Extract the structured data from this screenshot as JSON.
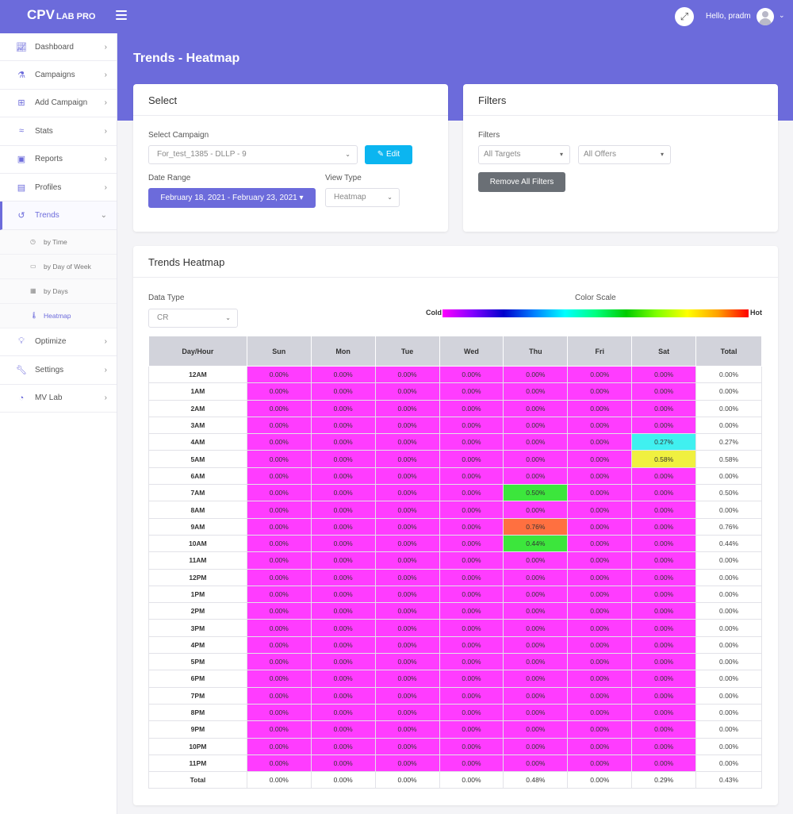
{
  "topbar": {
    "logo": "CPV",
    "logo_sub": "LAB PRO",
    "greeting": "Hello, pradm"
  },
  "sidebar": {
    "items": [
      {
        "label": "Dashboard",
        "icon": "chart-line-icon"
      },
      {
        "label": "Campaigns",
        "icon": "flask-icon"
      },
      {
        "label": "Add Campaign",
        "icon": "plus-square-icon"
      },
      {
        "label": "Stats",
        "icon": "stats-icon"
      },
      {
        "label": "Reports",
        "icon": "briefcase-icon"
      },
      {
        "label": "Profiles",
        "icon": "clipboard-icon"
      },
      {
        "label": "Trends",
        "icon": "history-icon"
      }
    ],
    "trends_sub": [
      {
        "label": "by Time",
        "icon": "clock-icon"
      },
      {
        "label": "by Day of Week",
        "icon": "calendar-icon"
      },
      {
        "label": "by Days",
        "icon": "calendar-days-icon"
      },
      {
        "label": "Heatmap",
        "icon": "thermometer-icon"
      }
    ],
    "items_after": [
      {
        "label": "Optimize",
        "icon": "lightbulb-icon"
      },
      {
        "label": "Settings",
        "icon": "wrench-icon"
      },
      {
        "label": "MV Lab",
        "icon": "mvlab-icon"
      }
    ]
  },
  "page": {
    "title": "Trends - Heatmap"
  },
  "select_card": {
    "title": "Select",
    "campaign_label": "Select Campaign",
    "campaign_value": "For_test_1385  -  DLLP  -  9",
    "edit_label": "Edit",
    "date_range_label": "Date Range",
    "date_range_value": "February 18, 2021 - February 23, 2021",
    "view_type_label": "View Type",
    "view_type_value": "Heatmap"
  },
  "filters_card": {
    "title": "Filters",
    "filters_label": "Filters",
    "targets_value": "All Targets",
    "offers_value": "All Offers",
    "remove_label": "Remove All Filters"
  },
  "heatmap_card": {
    "title": "Trends Heatmap",
    "data_type_label": "Data Type",
    "data_type_value": "CR",
    "color_scale_label": "Color Scale",
    "cold_label": "Cold",
    "hot_label": "Hot"
  },
  "colors": {
    "accent": "#6c6bdb",
    "edit_button": "#0bb5f0",
    "remove_button": "#6a6f75",
    "cell_zero": "#ff3cff",
    "cell_027": "#40f0f0",
    "cell_044": "#3ce63c",
    "cell_050": "#3ce63c",
    "cell_058": "#f0f040",
    "cell_076": "#ff7040"
  },
  "table": {
    "headers": [
      "Day/Hour",
      "Sun",
      "Mon",
      "Tue",
      "Wed",
      "Thu",
      "Fri",
      "Sat",
      "Total"
    ],
    "rows": [
      {
        "hour": "12AM",
        "cells": [
          "0.00%",
          "0.00%",
          "0.00%",
          "0.00%",
          "0.00%",
          "0.00%",
          "0.00%"
        ],
        "total": "0.00%"
      },
      {
        "hour": "1AM",
        "cells": [
          "0.00%",
          "0.00%",
          "0.00%",
          "0.00%",
          "0.00%",
          "0.00%",
          "0.00%"
        ],
        "total": "0.00%"
      },
      {
        "hour": "2AM",
        "cells": [
          "0.00%",
          "0.00%",
          "0.00%",
          "0.00%",
          "0.00%",
          "0.00%",
          "0.00%"
        ],
        "total": "0.00%"
      },
      {
        "hour": "3AM",
        "cells": [
          "0.00%",
          "0.00%",
          "0.00%",
          "0.00%",
          "0.00%",
          "0.00%",
          "0.00%"
        ],
        "total": "0.00%"
      },
      {
        "hour": "4AM",
        "cells": [
          "0.00%",
          "0.00%",
          "0.00%",
          "0.00%",
          "0.00%",
          "0.00%",
          "0.27%"
        ],
        "total": "0.27%"
      },
      {
        "hour": "5AM",
        "cells": [
          "0.00%",
          "0.00%",
          "0.00%",
          "0.00%",
          "0.00%",
          "0.00%",
          "0.58%"
        ],
        "total": "0.58%"
      },
      {
        "hour": "6AM",
        "cells": [
          "0.00%",
          "0.00%",
          "0.00%",
          "0.00%",
          "0.00%",
          "0.00%",
          "0.00%"
        ],
        "total": "0.00%"
      },
      {
        "hour": "7AM",
        "cells": [
          "0.00%",
          "0.00%",
          "0.00%",
          "0.00%",
          "0.50%",
          "0.00%",
          "0.00%"
        ],
        "total": "0.50%"
      },
      {
        "hour": "8AM",
        "cells": [
          "0.00%",
          "0.00%",
          "0.00%",
          "0.00%",
          "0.00%",
          "0.00%",
          "0.00%"
        ],
        "total": "0.00%"
      },
      {
        "hour": "9AM",
        "cells": [
          "0.00%",
          "0.00%",
          "0.00%",
          "0.00%",
          "0.76%",
          "0.00%",
          "0.00%"
        ],
        "total": "0.76%"
      },
      {
        "hour": "10AM",
        "cells": [
          "0.00%",
          "0.00%",
          "0.00%",
          "0.00%",
          "0.44%",
          "0.00%",
          "0.00%"
        ],
        "total": "0.44%"
      },
      {
        "hour": "11AM",
        "cells": [
          "0.00%",
          "0.00%",
          "0.00%",
          "0.00%",
          "0.00%",
          "0.00%",
          "0.00%"
        ],
        "total": "0.00%"
      },
      {
        "hour": "12PM",
        "cells": [
          "0.00%",
          "0.00%",
          "0.00%",
          "0.00%",
          "0.00%",
          "0.00%",
          "0.00%"
        ],
        "total": "0.00%"
      },
      {
        "hour": "1PM",
        "cells": [
          "0.00%",
          "0.00%",
          "0.00%",
          "0.00%",
          "0.00%",
          "0.00%",
          "0.00%"
        ],
        "total": "0.00%"
      },
      {
        "hour": "2PM",
        "cells": [
          "0.00%",
          "0.00%",
          "0.00%",
          "0.00%",
          "0.00%",
          "0.00%",
          "0.00%"
        ],
        "total": "0.00%"
      },
      {
        "hour": "3PM",
        "cells": [
          "0.00%",
          "0.00%",
          "0.00%",
          "0.00%",
          "0.00%",
          "0.00%",
          "0.00%"
        ],
        "total": "0.00%"
      },
      {
        "hour": "4PM",
        "cells": [
          "0.00%",
          "0.00%",
          "0.00%",
          "0.00%",
          "0.00%",
          "0.00%",
          "0.00%"
        ],
        "total": "0.00%"
      },
      {
        "hour": "5PM",
        "cells": [
          "0.00%",
          "0.00%",
          "0.00%",
          "0.00%",
          "0.00%",
          "0.00%",
          "0.00%"
        ],
        "total": "0.00%"
      },
      {
        "hour": "6PM",
        "cells": [
          "0.00%",
          "0.00%",
          "0.00%",
          "0.00%",
          "0.00%",
          "0.00%",
          "0.00%"
        ],
        "total": "0.00%"
      },
      {
        "hour": "7PM",
        "cells": [
          "0.00%",
          "0.00%",
          "0.00%",
          "0.00%",
          "0.00%",
          "0.00%",
          "0.00%"
        ],
        "total": "0.00%"
      },
      {
        "hour": "8PM",
        "cells": [
          "0.00%",
          "0.00%",
          "0.00%",
          "0.00%",
          "0.00%",
          "0.00%",
          "0.00%"
        ],
        "total": "0.00%"
      },
      {
        "hour": "9PM",
        "cells": [
          "0.00%",
          "0.00%",
          "0.00%",
          "0.00%",
          "0.00%",
          "0.00%",
          "0.00%"
        ],
        "total": "0.00%"
      },
      {
        "hour": "10PM",
        "cells": [
          "0.00%",
          "0.00%",
          "0.00%",
          "0.00%",
          "0.00%",
          "0.00%",
          "0.00%"
        ],
        "total": "0.00%"
      },
      {
        "hour": "11PM",
        "cells": [
          "0.00%",
          "0.00%",
          "0.00%",
          "0.00%",
          "0.00%",
          "0.00%",
          "0.00%"
        ],
        "total": "0.00%"
      }
    ],
    "totals": {
      "label": "Total",
      "cells": [
        "0.00%",
        "0.00%",
        "0.00%",
        "0.00%",
        "0.48%",
        "0.00%",
        "0.29%"
      ],
      "total": "0.43%"
    }
  }
}
